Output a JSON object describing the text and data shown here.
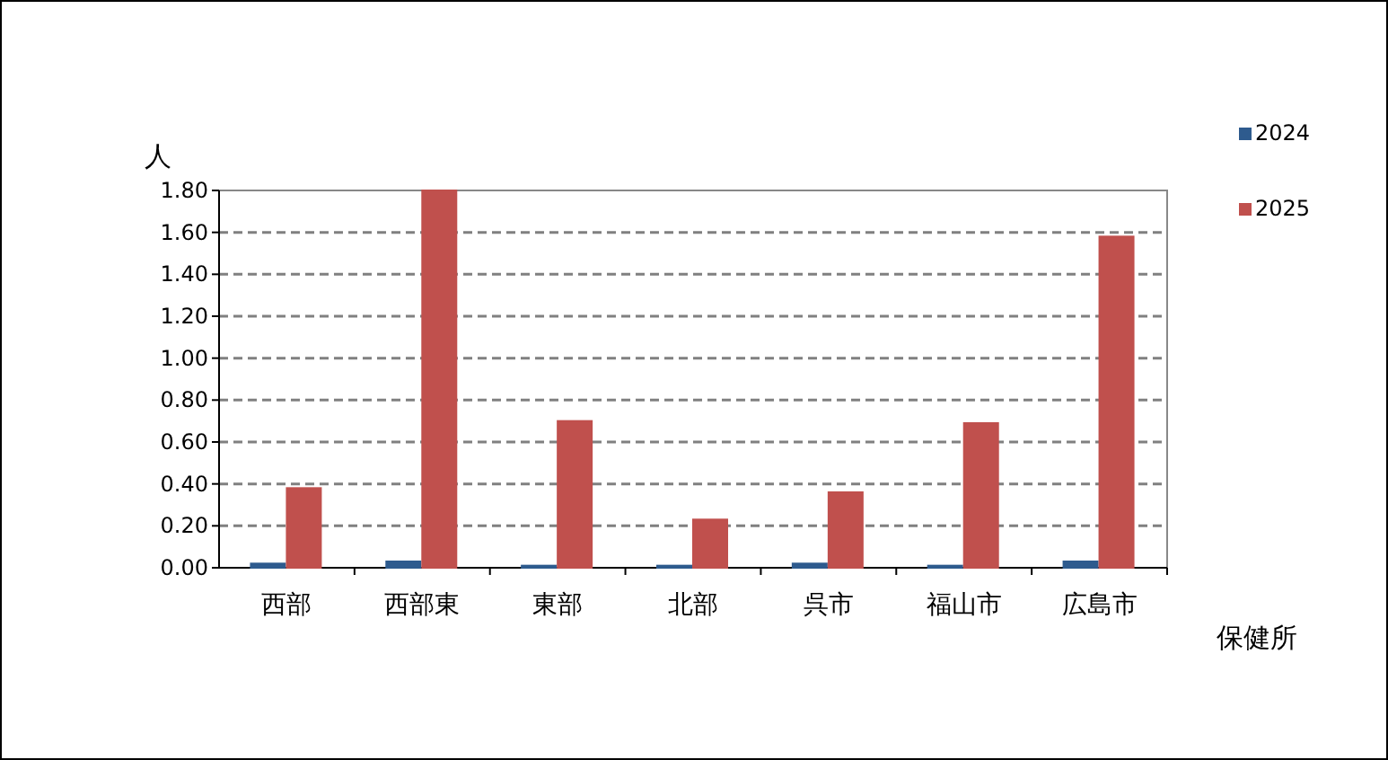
{
  "chart_data": {
    "type": "bar",
    "ylabel": "人",
    "xlabel": "保健所",
    "categories": [
      "西部",
      "西部東",
      "東部",
      "北部",
      "呉市",
      "福山市",
      "広島市"
    ],
    "series": [
      {
        "name": "2024",
        "color": "#2e5b8e",
        "values": [
          0.02,
          0.03,
          0.01,
          0.01,
          0.02,
          0.01,
          0.03
        ]
      },
      {
        "name": "2025",
        "color": "#c0504d",
        "values": [
          0.38,
          1.8,
          0.7,
          0.23,
          0.36,
          0.69,
          1.58
        ]
      }
    ],
    "ylim": [
      0,
      1.8
    ],
    "yticks": [
      {
        "value": 0,
        "label": "0.00"
      },
      {
        "value": 0.2,
        "label": "0.20"
      },
      {
        "value": 0.4,
        "label": "0.40"
      },
      {
        "value": 0.6,
        "label": "0.60"
      },
      {
        "value": 0.8,
        "label": "0.80"
      },
      {
        "value": 1,
        "label": "1.00"
      },
      {
        "value": 1.2,
        "label": "1.20"
      },
      {
        "value": 1.4,
        "label": "1.40"
      },
      {
        "value": 1.6,
        "label": "1.60"
      },
      {
        "value": 1.8,
        "label": "1.80"
      }
    ],
    "grid": "y",
    "legend": "right"
  }
}
